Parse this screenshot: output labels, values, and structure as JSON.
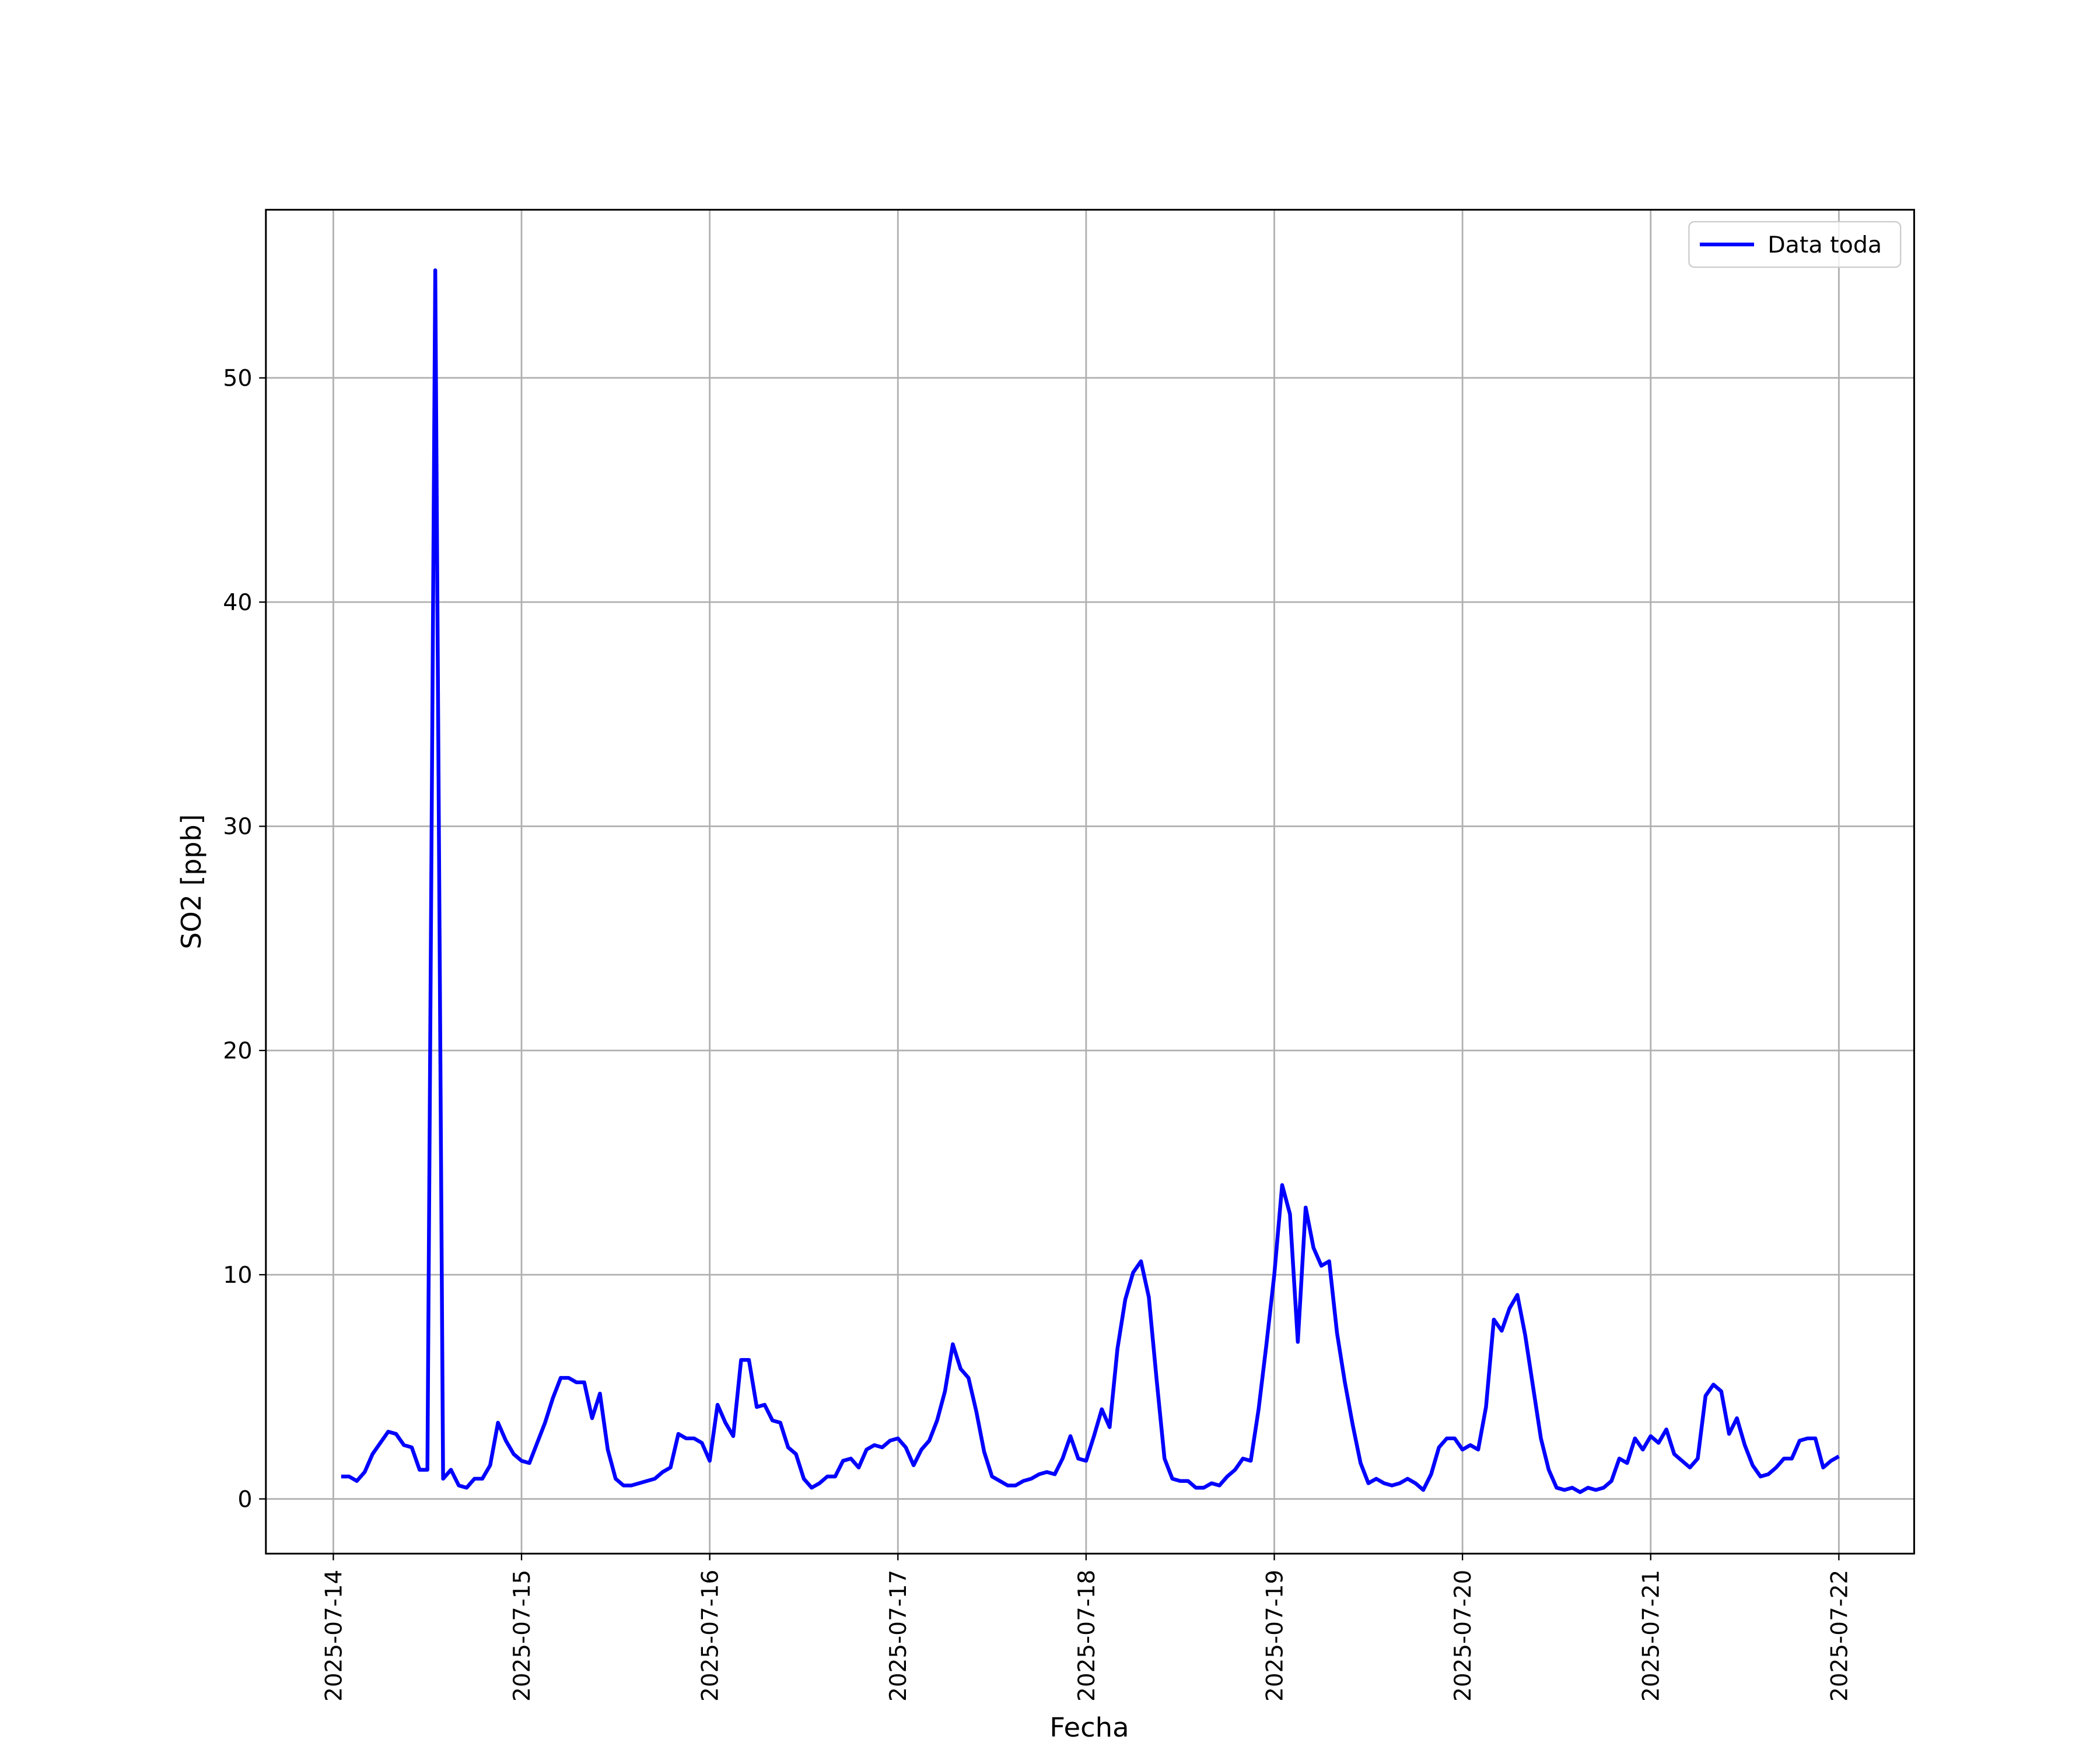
{
  "chart_data": {
    "type": "line",
    "x_label": "Fecha",
    "y_label": "SO2 [ppb]",
    "xlim": [
      -8.6,
      201.6
    ],
    "xticks": [
      {
        "value": 0,
        "label": "2025-07-14"
      },
      {
        "value": 24,
        "label": "2025-07-15"
      },
      {
        "value": 48,
        "label": "2025-07-16"
      },
      {
        "value": 72,
        "label": "2025-07-17"
      },
      {
        "value": 96,
        "label": "2025-07-18"
      },
      {
        "value": 120,
        "label": "2025-07-19"
      },
      {
        "value": 144,
        "label": "2025-07-20"
      },
      {
        "value": 168,
        "label": "2025-07-21"
      },
      {
        "value": 192,
        "label": "2025-07-22"
      }
    ],
    "ylim": [
      -2.44,
      57.5
    ],
    "yticks": [
      0,
      10,
      20,
      30,
      40,
      50
    ],
    "grid": true,
    "legend": "upper right",
    "x": [
      1,
      2,
      3,
      4,
      5,
      6,
      7,
      8,
      9,
      10,
      11,
      12,
      13,
      14,
      15,
      16,
      17,
      18,
      19,
      20,
      21,
      22,
      23,
      24,
      25,
      26,
      27,
      28,
      29,
      30,
      31,
      32,
      33,
      34,
      35,
      36,
      37,
      38,
      39,
      40,
      41,
      42,
      43,
      44,
      45,
      46,
      47,
      48,
      49,
      50,
      51,
      52,
      53,
      54,
      55,
      56,
      57,
      58,
      59,
      60,
      61,
      62,
      63,
      64,
      65,
      66,
      67,
      68,
      69,
      70,
      71,
      72,
      73,
      74,
      75,
      76,
      77,
      78,
      79,
      80,
      81,
      82,
      83,
      84,
      85,
      86,
      87,
      88,
      89,
      90,
      91,
      92,
      93,
      94,
      95,
      96,
      97,
      98,
      99,
      100,
      101,
      102,
      103,
      104,
      105,
      106,
      107,
      108,
      109,
      110,
      111,
      112,
      113,
      114,
      115,
      116,
      117,
      118,
      119,
      120,
      121,
      122,
      123,
      124,
      125,
      126,
      127,
      128,
      129,
      130,
      131,
      132,
      133,
      134,
      135,
      136,
      137,
      138,
      139,
      140,
      141,
      142,
      143,
      144,
      145,
      146,
      147,
      148,
      149,
      150,
      151,
      152,
      153,
      154,
      155,
      156,
      157,
      158,
      159,
      160,
      161,
      162,
      163,
      164,
      165,
      166,
      167,
      168,
      169,
      170,
      171,
      172,
      173,
      174,
      175,
      176,
      177,
      178,
      179,
      180,
      181,
      182,
      183,
      184,
      185,
      186,
      187,
      188,
      189,
      190,
      191,
      192
    ],
    "series": [
      {
        "name": "Data toda",
        "color": "#0000ff",
        "values": [
          1.0,
          1.0,
          0.8,
          1.2,
          2.0,
          2.5,
          3.0,
          2.9,
          2.4,
          2.3,
          1.3,
          1.3,
          54.8,
          0.9,
          1.3,
          0.6,
          0.5,
          0.9,
          0.9,
          1.5,
          3.4,
          2.6,
          2.0,
          1.7,
          1.6,
          2.5,
          3.4,
          4.5,
          5.4,
          5.4,
          5.2,
          5.2,
          3.6,
          4.7,
          2.2,
          0.9,
          0.6,
          0.6,
          0.7,
          0.8,
          0.9,
          1.2,
          1.4,
          2.9,
          2.7,
          2.7,
          2.5,
          1.7,
          4.2,
          3.4,
          2.8,
          6.2,
          6.2,
          4.1,
          4.2,
          3.5,
          3.4,
          2.3,
          2.0,
          0.9,
          0.5,
          0.7,
          1.0,
          1.0,
          1.7,
          1.8,
          1.4,
          2.2,
          2.4,
          2.3,
          2.6,
          2.7,
          2.3,
          1.5,
          2.2,
          2.6,
          3.5,
          4.8,
          6.9,
          5.8,
          5.4,
          3.9,
          2.1,
          1.0,
          0.8,
          0.6,
          0.6,
          0.8,
          0.9,
          1.1,
          1.2,
          1.1,
          1.8,
          2.8,
          1.8,
          1.7,
          2.8,
          4.0,
          3.2,
          6.7,
          8.9,
          10.1,
          10.6,
          9.0,
          5.3,
          1.8,
          0.9,
          0.8,
          0.8,
          0.5,
          0.5,
          0.7,
          0.6,
          1.0,
          1.3,
          1.8,
          1.7,
          4.0,
          6.9,
          10.0,
          14.0,
          12.7,
          7.0,
          13.0,
          11.2,
          10.4,
          10.6,
          7.4,
          5.2,
          3.3,
          1.6,
          0.7,
          0.9,
          0.7,
          0.6,
          0.7,
          0.9,
          0.7,
          0.4,
          1.1,
          2.3,
          2.7,
          2.7,
          2.2,
          2.4,
          2.2,
          4.1,
          8.0,
          7.5,
          8.5,
          9.1,
          7.3,
          5.0,
          2.7,
          1.3,
          0.5,
          0.4,
          0.5,
          0.3,
          0.5,
          0.4,
          0.5,
          0.8,
          1.8,
          1.6,
          2.7,
          2.2,
          2.8,
          2.5,
          3.1,
          2.0,
          1.7,
          1.4,
          1.8,
          4.6,
          5.1,
          4.8,
          2.9,
          3.6,
          2.4,
          1.5,
          1.0,
          1.1,
          1.4,
          1.8,
          1.8,
          2.6,
          2.7,
          2.7,
          1.4,
          1.7,
          1.9
        ]
      }
    ]
  }
}
